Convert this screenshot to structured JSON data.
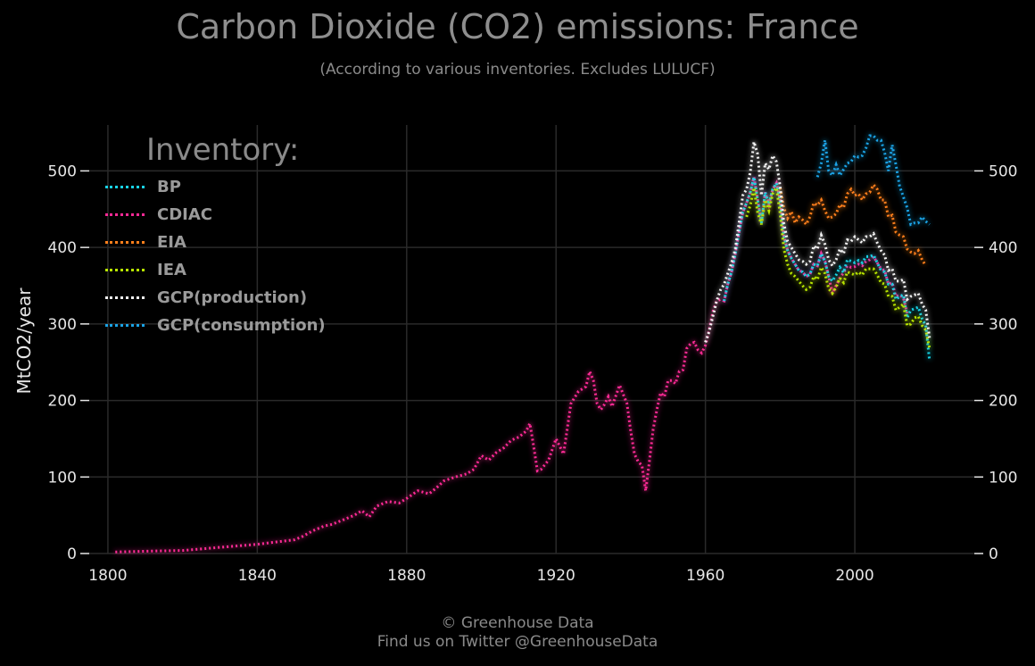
{
  "page": {
    "title": "Carbon Dioxide (CO2) emissions: France",
    "subtitle": "(According to various inventories. Excludes LULUCF)",
    "footer_line1": "© Greenhouse Data",
    "footer_line2": "Find us on Twitter @GreenhouseData"
  },
  "legend": {
    "title": "Inventory:",
    "placement": "top-left"
  },
  "colors": {
    "background": "#000000",
    "grid": "#2a2a2a",
    "tick_text": "#e6e6e6"
  },
  "chart_data": {
    "type": "line",
    "title": "Carbon Dioxide (CO2) emissions: France",
    "subtitle": "(According to various inventories. Excludes LULUCF)",
    "xlabel": "",
    "ylabel": "MtCO2/year",
    "xlim": [
      1795,
      2032
    ],
    "ylim": [
      0,
      560
    ],
    "xticks": [
      1800,
      1840,
      1880,
      1920,
      1960,
      2000
    ],
    "yticks": [
      0,
      100,
      200,
      300,
      400,
      500
    ],
    "grid": true,
    "legend_placement": "top-left",
    "series": [
      {
        "name": "BP",
        "color": "#19d3e6",
        "x": [
          1965,
          1966,
          1967,
          1968,
          1969,
          1970,
          1971,
          1972,
          1973,
          1974,
          1975,
          1976,
          1977,
          1978,
          1979,
          1980,
          1981,
          1982,
          1983,
          1984,
          1985,
          1986,
          1987,
          1988,
          1989,
          1990,
          1991,
          1992,
          1993,
          1994,
          1995,
          1996,
          1997,
          1998,
          1999,
          2000,
          2001,
          2002,
          2003,
          2004,
          2005,
          2006,
          2007,
          2008,
          2009,
          2010,
          2011,
          2012,
          2013,
          2014,
          2015,
          2016,
          2017,
          2018,
          2019,
          2020
        ],
        "y": [
          330,
          352,
          368,
          392,
          420,
          446,
          458,
          472,
          492,
          462,
          432,
          472,
          456,
          476,
          484,
          462,
          415,
          396,
          386,
          378,
          370,
          368,
          362,
          365,
          378,
          376,
          392,
          382,
          362,
          356,
          364,
          374,
          367,
          384,
          382,
          380,
          383,
          380,
          388,
          388,
          390,
          380,
          370,
          368,
          352,
          352,
          332,
          336,
          338,
          308,
          318,
          320,
          322,
          307,
          298,
          252
        ]
      },
      {
        "name": "CDIAC",
        "color": "#ff2a96",
        "x": [
          1802,
          1810,
          1820,
          1825,
          1830,
          1835,
          1840,
          1845,
          1850,
          1852,
          1855,
          1858,
          1860,
          1863,
          1866,
          1868,
          1870,
          1872,
          1875,
          1878,
          1880,
          1883,
          1886,
          1888,
          1890,
          1893,
          1896,
          1898,
          1900,
          1902,
          1904,
          1906,
          1908,
          1910,
          1912,
          1913,
          1914,
          1915,
          1916,
          1918,
          1920,
          1922,
          1924,
          1926,
          1928,
          1929,
          1930,
          1931,
          1932,
          1933,
          1934,
          1935,
          1936,
          1937,
          1938,
          1939,
          1940,
          1941,
          1942,
          1943,
          1944,
          1945,
          1946,
          1947,
          1948,
          1949,
          1950,
          1951,
          1952,
          1953,
          1954,
          1955,
          1956,
          1957,
          1958,
          1959,
          1960,
          1961,
          1962,
          1963,
          1964,
          1965,
          1966,
          1967,
          1968,
          1969,
          1970,
          1971,
          1972,
          1973,
          1974,
          1975,
          1976,
          1977,
          1978,
          1979,
          1980,
          1981,
          1982,
          1983,
          1984,
          1985,
          1986,
          1987,
          1988,
          1989,
          1990,
          1991,
          1992,
          1993,
          1994,
          1995,
          1996,
          1997,
          1998,
          1999,
          2000,
          2001,
          2002,
          2003,
          2004,
          2005,
          2006,
          2007,
          2008,
          2009,
          2010,
          2011,
          2012,
          2013,
          2014
        ],
        "y": [
          2,
          3,
          4,
          6,
          8,
          10,
          12,
          15,
          18,
          22,
          30,
          36,
          38,
          44,
          50,
          56,
          48,
          62,
          68,
          66,
          72,
          82,
          78,
          86,
          95,
          100,
          104,
          110,
          128,
          122,
          132,
          138,
          148,
          152,
          160,
          170,
          140,
          108,
          110,
          122,
          150,
          130,
          196,
          212,
          218,
          238,
          226,
          196,
          188,
          195,
          205,
          192,
          206,
          220,
          208,
          196,
          160,
          130,
          120,
          115,
          82,
          120,
          162,
          188,
          210,
          205,
          226,
          226,
          222,
          238,
          240,
          268,
          274,
          276,
          266,
          262,
          272,
          292,
          316,
          330,
          332,
          330,
          352,
          368,
          392,
          420,
          446,
          458,
          472,
          492,
          462,
          432,
          472,
          456,
          476,
          484,
          462,
          415,
          396,
          386,
          378,
          370,
          368,
          362,
          365,
          378,
          376,
          392,
          382,
          362,
          340,
          350,
          360,
          367,
          376,
          374,
          375,
          378,
          376,
          382,
          384,
          388,
          380,
          372,
          370,
          352,
          354,
          336,
          338,
          334,
          314
        ]
      },
      {
        "name": "EIA",
        "color": "#ff7f1a",
        "x": [
          1980,
          1981,
          1982,
          1983,
          1984,
          1985,
          1986,
          1987,
          1988,
          1989,
          1990,
          1991,
          1992,
          1993,
          1994,
          1995,
          1996,
          1997,
          1998,
          1999,
          2000,
          2001,
          2002,
          2003,
          2004,
          2005,
          2006,
          2007,
          2008,
          2009,
          2010,
          2011,
          2012,
          2013,
          2014,
          2015,
          2016,
          2017,
          2018,
          2019
        ],
        "y": [
          478,
          452,
          438,
          447,
          432,
          440,
          436,
          430,
          440,
          458,
          455,
          462,
          448,
          438,
          440,
          444,
          456,
          452,
          470,
          476,
          468,
          470,
          462,
          470,
          472,
          482,
          476,
          462,
          462,
          440,
          442,
          420,
          416,
          414,
          398,
          394,
          392,
          396,
          384,
          376
        ]
      },
      {
        "name": "IEA",
        "color": "#b8e600",
        "x": [
          1971,
          1972,
          1973,
          1974,
          1975,
          1976,
          1977,
          1978,
          1979,
          1980,
          1981,
          1982,
          1983,
          1984,
          1985,
          1986,
          1987,
          1988,
          1989,
          1990,
          1991,
          1992,
          1993,
          1994,
          1995,
          1996,
          1997,
          1998,
          1999,
          2000,
          2001,
          2002,
          2003,
          2004,
          2005,
          2006,
          2007,
          2008,
          2009,
          2010,
          2011,
          2012,
          2013,
          2014,
          2015,
          2016,
          2017,
          2018,
          2019,
          2020
        ],
        "y": [
          440,
          455,
          478,
          445,
          430,
          462,
          448,
          470,
          478,
          445,
          398,
          378,
          366,
          362,
          356,
          350,
          345,
          348,
          362,
          358,
          374,
          366,
          346,
          340,
          348,
          360,
          354,
          368,
          366,
          364,
          368,
          364,
          372,
          372,
          372,
          364,
          354,
          352,
          336,
          336,
          318,
          322,
          326,
          298,
          300,
          308,
          310,
          298,
          292,
          268
        ]
      },
      {
        "name": "GCP(production)",
        "color": "#f4f4f4",
        "x": [
          1960,
          1961,
          1962,
          1963,
          1964,
          1965,
          1966,
          1967,
          1968,
          1969,
          1970,
          1971,
          1972,
          1973,
          1974,
          1975,
          1976,
          1977,
          1978,
          1979,
          1980,
          1981,
          1982,
          1983,
          1984,
          1985,
          1986,
          1987,
          1988,
          1989,
          1990,
          1991,
          1992,
          1993,
          1994,
          1995,
          1996,
          1997,
          1998,
          1999,
          2000,
          2001,
          2002,
          2003,
          2004,
          2005,
          2006,
          2007,
          2008,
          2009,
          2010,
          2011,
          2012,
          2013,
          2014,
          2015,
          2016,
          2017,
          2018,
          2019,
          2020
        ],
        "y": [
          276,
          290,
          310,
          330,
          344,
          352,
          366,
          380,
          398,
          432,
          468,
          476,
          498,
          538,
          522,
          468,
          510,
          502,
          520,
          512,
          480,
          432,
          408,
          400,
          392,
          384,
          382,
          378,
          382,
          402,
          398,
          416,
          404,
          384,
          376,
          384,
          398,
          392,
          410,
          408,
          414,
          410,
          406,
          414,
          414,
          418,
          406,
          396,
          390,
          370,
          372,
          356,
          356,
          358,
          332,
          336,
          338,
          340,
          326,
          318,
          282
        ]
      },
      {
        "name": "GCP(consumption)",
        "color": "#1aa3e6",
        "x": [
          1990,
          1991,
          1992,
          1993,
          1994,
          1995,
          1996,
          1997,
          1998,
          1999,
          2000,
          2001,
          2002,
          2003,
          2004,
          2005,
          2006,
          2007,
          2008,
          2009,
          2010,
          2011,
          2012,
          2013,
          2014,
          2015,
          2016,
          2017,
          2018,
          2019,
          2020
        ],
        "y": [
          492,
          510,
          540,
          500,
          494,
          508,
          494,
          502,
          510,
          512,
          520,
          518,
          520,
          530,
          546,
          546,
          540,
          540,
          524,
          500,
          534,
          508,
          480,
          466,
          452,
          430,
          432,
          432,
          440,
          434,
          430
        ]
      }
    ]
  }
}
